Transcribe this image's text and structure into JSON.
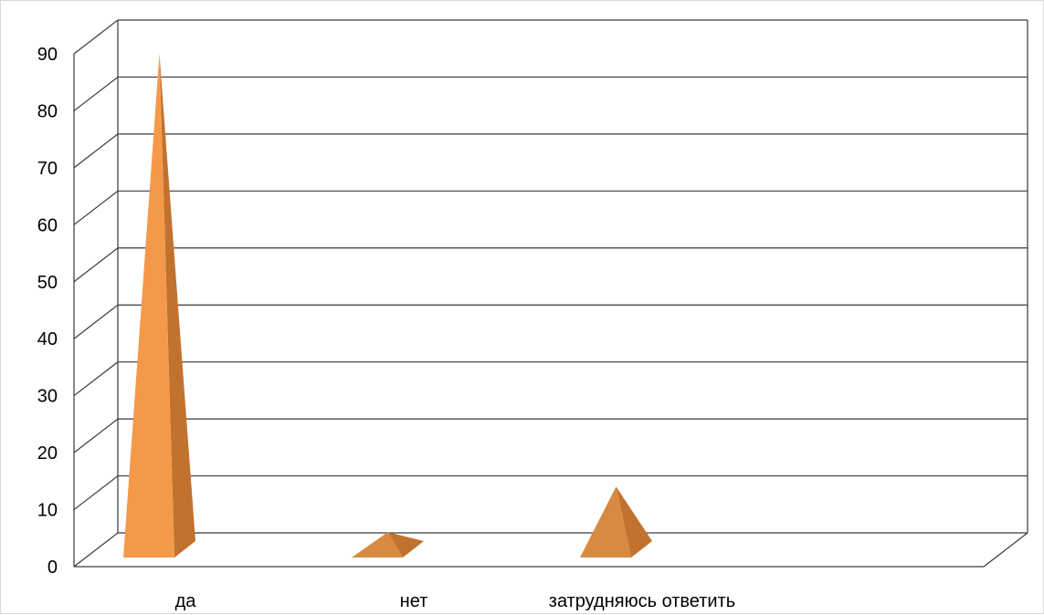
{
  "chart_data": {
    "type": "bar",
    "subtype": "3d-pyramid",
    "title": "",
    "xlabel": "",
    "ylabel": "",
    "categories": [
      "да",
      "нет",
      "затрудняюсь ответить"
    ],
    "series": [
      {
        "values": [
          87,
          3,
          11
        ]
      }
    ],
    "ylim": [
      0,
      90
    ],
    "yticks": [
      "0",
      "10",
      "20",
      "30",
      "40",
      "50",
      "60",
      "70",
      "80",
      "90"
    ],
    "grid": true,
    "legend": "none",
    "colors": {
      "pyramid_light": "#f4994a",
      "pyramid_dark": "#c2722f",
      "pyramid_mid": "#d98a42",
      "grid": "#3a3a3a",
      "frame": "#d9d9d9"
    }
  }
}
